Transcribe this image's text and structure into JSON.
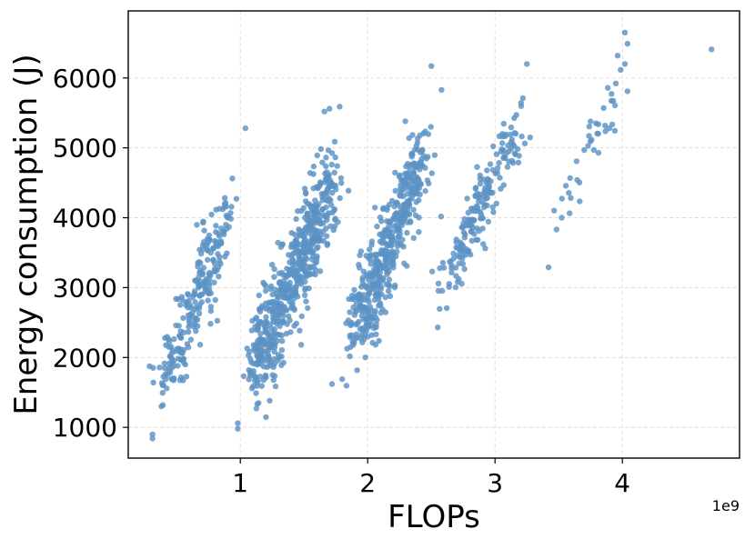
{
  "chart_data": {
    "type": "scatter",
    "xlabel": "FLOPs",
    "ylabel": "Energy consumption (J)",
    "x_offset_label": "1e9",
    "x_scale": 1000000000,
    "xlim": [
      0.12,
      4.92
    ],
    "ylim": [
      560,
      6960
    ],
    "x_ticks": [
      1,
      2,
      3,
      4
    ],
    "x_tick_labels": [
      "1",
      "2",
      "3",
      "4"
    ],
    "y_ticks": [
      1000,
      2000,
      3000,
      4000,
      5000,
      6000
    ],
    "y_tick_labels": [
      "1000",
      "2000",
      "3000",
      "4000",
      "5000",
      "6000"
    ],
    "grid": true,
    "marker_color": "#5b93c4",
    "clusters": [
      {
        "x_start": 0.33,
        "x_end": 0.95,
        "y_start": 1200,
        "y_end": 4350,
        "x_spread": 0.14,
        "y_spread": 520,
        "count": 240
      },
      {
        "x_start": 1.05,
        "x_end": 1.78,
        "y_start": 1450,
        "y_end": 4800,
        "x_spread": 0.16,
        "y_spread": 650,
        "count": 600
      },
      {
        "x_start": 1.85,
        "x_end": 2.48,
        "y_start": 2000,
        "y_end": 5200,
        "x_spread": 0.15,
        "y_spread": 560,
        "count": 480
      },
      {
        "x_start": 2.55,
        "x_end": 3.25,
        "y_start": 2850,
        "y_end": 5600,
        "x_spread": 0.12,
        "y_spread": 460,
        "count": 190
      },
      {
        "x_start": 3.45,
        "x_end": 4.05,
        "y_start": 3800,
        "y_end": 6150,
        "x_spread": 0.1,
        "y_spread": 380,
        "count": 40
      }
    ],
    "extra_points": [
      {
        "x": 0.31,
        "y": 840
      },
      {
        "x": 0.31,
        "y": 900
      },
      {
        "x": 0.38,
        "y": 1300
      },
      {
        "x": 0.98,
        "y": 980
      },
      {
        "x": 0.98,
        "y": 1060
      },
      {
        "x": 1.04,
        "y": 5280
      },
      {
        "x": 1.72,
        "y": 1620
      },
      {
        "x": 1.8,
        "y": 1690
      },
      {
        "x": 1.78,
        "y": 5590
      },
      {
        "x": 1.66,
        "y": 5520
      },
      {
        "x": 1.7,
        "y": 5560
      },
      {
        "x": 2.5,
        "y": 6170
      },
      {
        "x": 2.55,
        "y": 2430
      },
      {
        "x": 2.58,
        "y": 5830
      },
      {
        "x": 3.25,
        "y": 6200
      },
      {
        "x": 3.42,
        "y": 3290
      },
      {
        "x": 4.02,
        "y": 6650
      },
      {
        "x": 4.04,
        "y": 6490
      },
      {
        "x": 4.04,
        "y": 5810
      },
      {
        "x": 4.02,
        "y": 6200
      },
      {
        "x": 4.7,
        "y": 6410
      }
    ]
  }
}
